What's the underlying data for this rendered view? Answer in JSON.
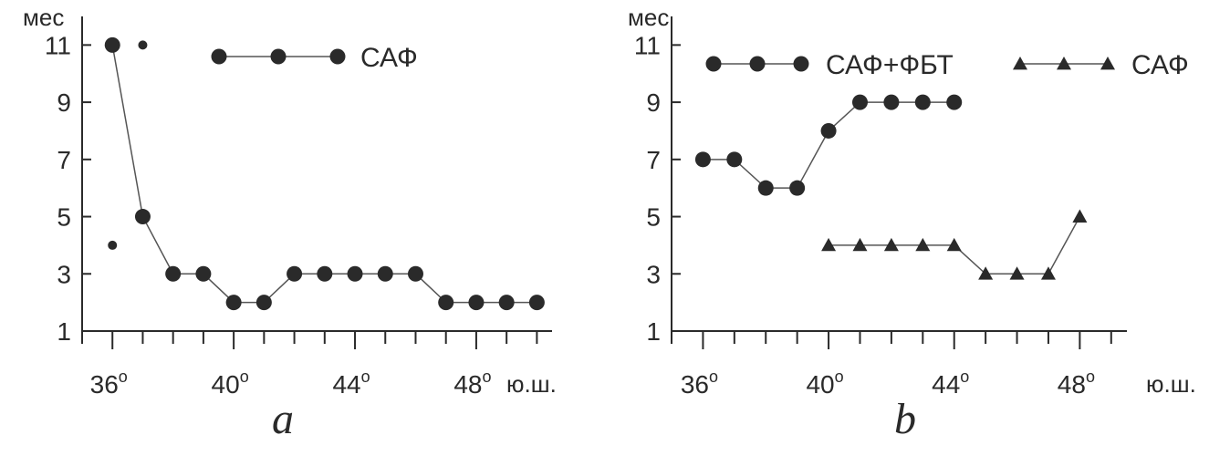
{
  "colors": {
    "ink": "#2a2a2a",
    "line": "#555555"
  },
  "charts": [
    {
      "panel_label": "a",
      "ylabel": "мес",
      "xunit": "ю.ш.",
      "legend": [
        "САФ"
      ],
      "chart_data": {
        "type": "line",
        "xlim": [
          35,
          50.5
        ],
        "ylim": [
          1,
          12
        ],
        "yticks": [
          1,
          3,
          5,
          7,
          9,
          11
        ],
        "xticks_labeled": [
          36,
          40,
          44,
          48
        ],
        "xticks_minor": [
          35,
          37,
          38,
          39,
          41,
          42,
          43,
          45,
          46,
          47,
          49,
          50
        ],
        "series": [
          {
            "name": "САФ",
            "marker": "circle",
            "x": [
              36,
              37,
              38,
              39,
              40,
              41,
              42,
              43,
              44,
              45,
              46,
              47,
              48,
              49,
              50
            ],
            "values": [
              11,
              5,
              3,
              3,
              2,
              2,
              3,
              3,
              3,
              3,
              3,
              2,
              2,
              2,
              2
            ]
          },
          {
            "name": "",
            "marker": "small-dot",
            "x": [
              36,
              37
            ],
            "values": [
              4,
              11
            ]
          }
        ]
      }
    },
    {
      "panel_label": "b",
      "ylabel": "мес",
      "xunit": "ю.ш.",
      "legend": [
        "САФ+ФБТ",
        "САФ"
      ],
      "chart_data": {
        "type": "line",
        "xlim": [
          35,
          49.5
        ],
        "ylim": [
          1,
          12
        ],
        "yticks": [
          1,
          3,
          5,
          7,
          9,
          11
        ],
        "xticks_labeled": [
          36,
          40,
          44,
          48
        ],
        "xticks_minor": [
          35,
          37,
          38,
          39,
          41,
          42,
          43,
          45,
          46,
          47,
          49
        ],
        "series": [
          {
            "name": "САФ+ФБТ",
            "marker": "circle",
            "x": [
              36,
              37,
              38,
              39,
              40,
              41,
              42,
              43,
              44
            ],
            "values": [
              7,
              7,
              6,
              6,
              8,
              9,
              9,
              9,
              9
            ]
          },
          {
            "name": "САФ",
            "marker": "triangle",
            "x": [
              40,
              41,
              42,
              43,
              44,
              45,
              46,
              47,
              48
            ],
            "values": [
              4,
              4,
              4,
              4,
              4,
              3,
              3,
              3,
              5
            ]
          }
        ]
      }
    }
  ]
}
